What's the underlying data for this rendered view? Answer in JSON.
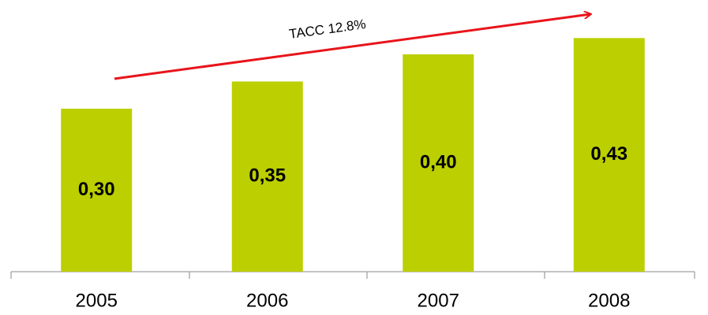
{
  "chart_data": {
    "type": "bar",
    "annotation": "TACC 12.8%",
    "categories": [
      "2005",
      "2006",
      "2007",
      "2008"
    ],
    "values": [
      0.3,
      0.35,
      0.4,
      0.43
    ],
    "value_labels": [
      "0,30",
      "0,35",
      "0,40",
      "0,43"
    ],
    "color": "#bccf00"
  }
}
